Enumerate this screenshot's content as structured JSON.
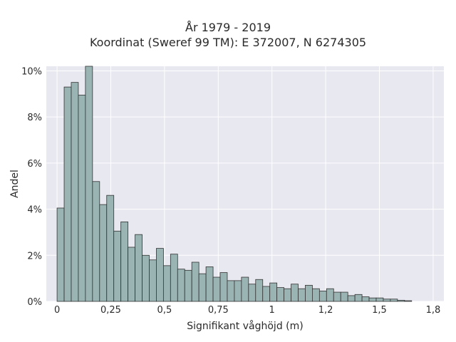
{
  "chart_data": {
    "type": "bar",
    "title": "År 1979 - 2019",
    "subtitle": "Koordinat (Sweref 99 TM): E 372007, N 6274305",
    "xlabel": "Signifikant våghöjd (m)",
    "ylabel": "Andel",
    "xlim": [
      -0.05,
      1.8
    ],
    "ylim": [
      0,
      10.2
    ],
    "bin_start": 0.0,
    "bin_width": 0.033,
    "x_ticks": [
      {
        "value": 0,
        "label": "0"
      },
      {
        "value": 0.25,
        "label": "0,25"
      },
      {
        "value": 0.5,
        "label": "0,5"
      },
      {
        "value": 0.75,
        "label": "0,75"
      },
      {
        "value": 1.0,
        "label": "1"
      },
      {
        "value": 1.25,
        "label": "1,2"
      },
      {
        "value": 1.5,
        "label": "1,5"
      },
      {
        "value": 1.75,
        "label": "1,8"
      }
    ],
    "y_ticks": [
      {
        "value": 0,
        "label": "0%"
      },
      {
        "value": 2,
        "label": "2%"
      },
      {
        "value": 4,
        "label": "4%"
      },
      {
        "value": 6,
        "label": "6%"
      },
      {
        "value": 8,
        "label": "8%"
      },
      {
        "value": 10,
        "label": "10%"
      }
    ],
    "values": [
      4.05,
      9.3,
      9.5,
      8.95,
      10.2,
      5.2,
      4.2,
      4.6,
      3.05,
      3.45,
      2.35,
      2.9,
      2.0,
      1.8,
      2.3,
      1.55,
      2.05,
      1.4,
      1.35,
      1.7,
      1.2,
      1.5,
      1.05,
      1.25,
      0.9,
      0.9,
      1.05,
      0.75,
      0.95,
      0.65,
      0.8,
      0.6,
      0.55,
      0.75,
      0.55,
      0.7,
      0.55,
      0.45,
      0.55,
      0.4,
      0.4,
      0.25,
      0.3,
      0.2,
      0.15,
      0.15,
      0.1,
      0.1,
      0.05,
      0.03
    ],
    "grid": true,
    "legend": "none",
    "colors": {
      "bar_fill": "#9ab3b3",
      "bar_edge": "#333333",
      "plot_bg": "#e8e8f0",
      "grid": "#ffffff"
    }
  }
}
